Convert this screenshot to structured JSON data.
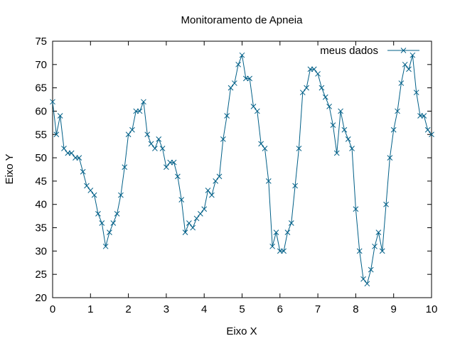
{
  "chart_data": {
    "type": "line",
    "title": "Monitoramento de Apneia",
    "xlabel": "Eixo X",
    "ylabel": "Eixo Y",
    "xlim": [
      0,
      10
    ],
    "ylim": [
      20,
      75
    ],
    "xticks": [
      0,
      1,
      2,
      3,
      4,
      5,
      6,
      7,
      8,
      9,
      10
    ],
    "yticks": [
      20,
      25,
      30,
      35,
      40,
      45,
      50,
      55,
      60,
      65,
      70,
      75
    ],
    "grid": false,
    "legend_position": "top-right",
    "color": "#005f87",
    "marker": "x",
    "series": [
      {
        "name": "meus dados",
        "x": [
          0.0,
          0.1,
          0.2,
          0.3,
          0.4,
          0.5,
          0.6,
          0.7,
          0.8,
          0.9,
          1.0,
          1.1,
          1.2,
          1.3,
          1.4,
          1.5,
          1.6,
          1.7,
          1.8,
          1.9,
          2.0,
          2.1,
          2.2,
          2.3,
          2.4,
          2.5,
          2.6,
          2.7,
          2.8,
          2.9,
          3.0,
          3.1,
          3.2,
          3.3,
          3.4,
          3.5,
          3.6,
          3.7,
          3.8,
          3.9,
          4.0,
          4.1,
          4.2,
          4.3,
          4.4,
          4.5,
          4.6,
          4.7,
          4.8,
          4.9,
          5.0,
          5.1,
          5.2,
          5.3,
          5.4,
          5.5,
          5.6,
          5.7,
          5.8,
          5.9,
          6.0,
          6.1,
          6.2,
          6.3,
          6.4,
          6.5,
          6.6,
          6.7,
          6.8,
          6.9,
          7.0,
          7.1,
          7.2,
          7.3,
          7.4,
          7.5,
          7.6,
          7.7,
          7.8,
          7.9,
          8.0,
          8.1,
          8.2,
          8.3,
          8.4,
          8.5,
          8.6,
          8.7,
          8.8,
          8.9,
          9.0,
          9.1,
          9.2,
          9.3,
          9.4,
          9.5,
          9.6,
          9.7,
          9.8,
          9.9,
          10.0
        ],
        "y": [
          62,
          55,
          59,
          52,
          51,
          51,
          50,
          50,
          47,
          44,
          43,
          42,
          38,
          36,
          31,
          34,
          36,
          38,
          42,
          48,
          55,
          56,
          60,
          60,
          62,
          55,
          53,
          52,
          54,
          52,
          48,
          49,
          49,
          46,
          41,
          34,
          36,
          35,
          37,
          38,
          39,
          43,
          42,
          45,
          46,
          54,
          59,
          65,
          66,
          70,
          72,
          67,
          67,
          61,
          60,
          53,
          52,
          45,
          31,
          34,
          30,
          30,
          34,
          36,
          44,
          52,
          64,
          65,
          69,
          69,
          68,
          65,
          63,
          61,
          57,
          51,
          60,
          56,
          54,
          52,
          39,
          30,
          24,
          23,
          26,
          31,
          34,
          30,
          40,
          50,
          56,
          60,
          66,
          70,
          69,
          72,
          64,
          59,
          59,
          56,
          55
        ]
      }
    ]
  }
}
